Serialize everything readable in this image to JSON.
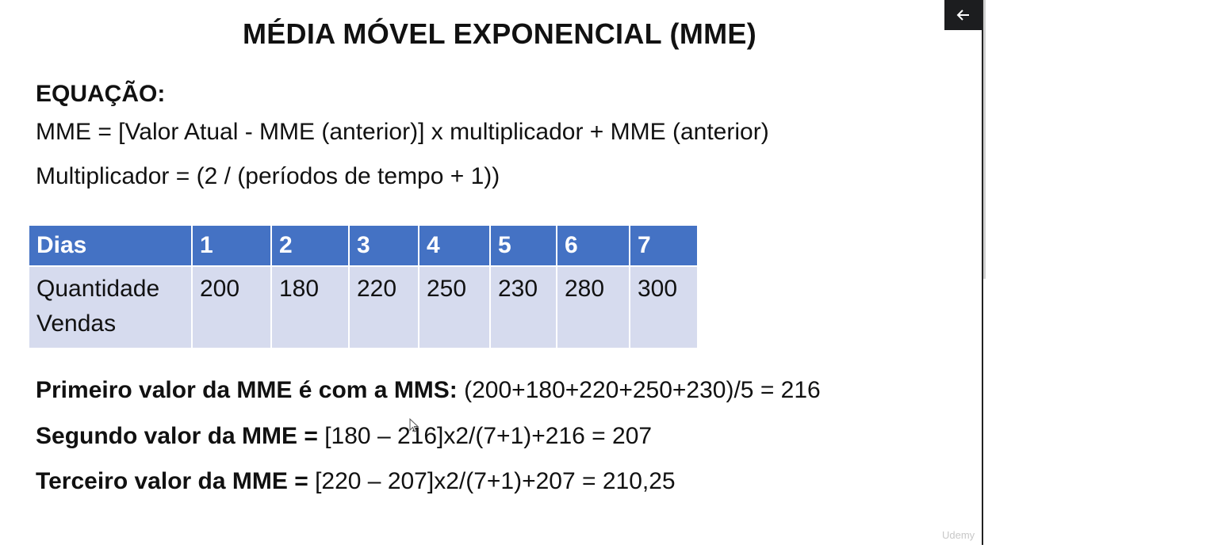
{
  "slide": {
    "title": "MÉDIA MÓVEL EXPONENCIAL (MME)",
    "equation_heading": "EQUAÇÃO:",
    "equation_line1": "MME = [Valor Atual - MME (anterior)] x multiplicador + MME (anterior)",
    "equation_line2": "Multiplicador = (2 / (períodos de tempo + 1))",
    "table": {
      "header": [
        "Dias",
        "1",
        "2",
        "3",
        "4",
        "5",
        "6",
        "7"
      ],
      "row_label_line1": "Quantidade",
      "row_label_line2": "Vendas",
      "values": [
        "200",
        "180",
        "220",
        "250",
        "230",
        "280",
        "300"
      ]
    },
    "results": [
      {
        "label": "Primeiro valor da MME é com a MMS:",
        "formula": " (200+180+220+250+230)/5 = 216"
      },
      {
        "label": "Segundo valor da MME =",
        "formula": " [180 – 216]x2/(7+1)+216 = 207"
      },
      {
        "label": "Terceiro valor da MME =",
        "formula": " [220 – 207]x2/(7+1)+207 = 210,25"
      }
    ],
    "watermark": "Udemy"
  },
  "player": {
    "back_icon": "arrow-left-icon",
    "panel_color": "#1c1d1f",
    "header_color": "#4472c4",
    "cell_color": "#d6dbee"
  }
}
